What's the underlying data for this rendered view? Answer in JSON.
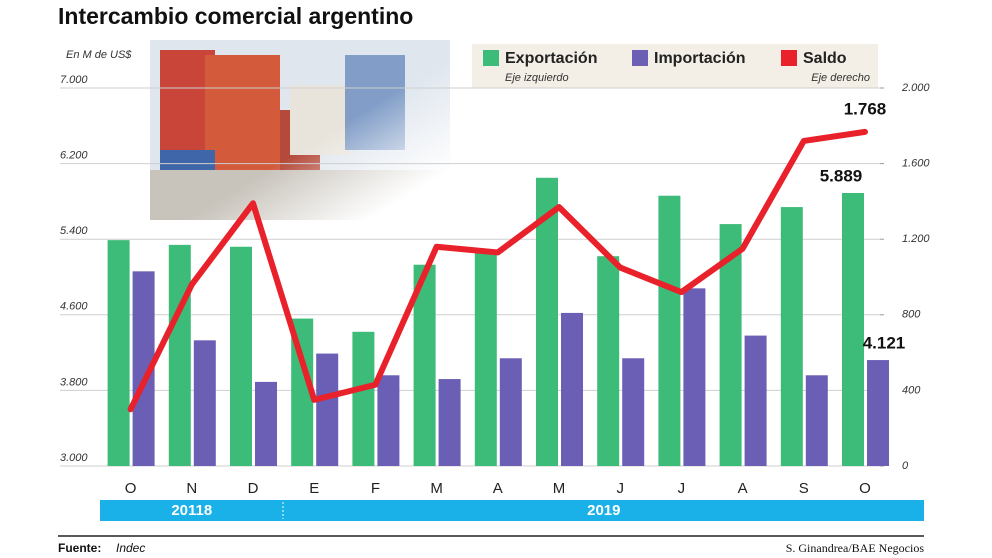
{
  "chart_data": {
    "type": "bar-line",
    "title": "Intercambio comercial argentino",
    "y_label": "En M de US$",
    "categories": [
      "O",
      "N",
      "D",
      "E",
      "F",
      "M",
      "A",
      "M",
      "J",
      "J",
      "A",
      "S",
      "O"
    ],
    "year_labels": [
      "20118",
      "2019"
    ],
    "ylim": [
      3000,
      7000
    ],
    "yticks": [
      {
        "value": 3000,
        "label": "3.000"
      },
      {
        "value": 3800,
        "label": "3.800"
      },
      {
        "value": 4600,
        "label": "4.600"
      },
      {
        "value": 5400,
        "label": "5.400"
      },
      {
        "value": 6200,
        "label": "6.200"
      },
      {
        "value": 7000,
        "label": "7.000"
      }
    ],
    "y2lim": [
      0,
      2000
    ],
    "y2ticks": [
      0,
      400,
      800,
      {
        "value": 1200,
        "label": "1.200"
      },
      {
        "value": 1600,
        "label": "1.600"
      },
      {
        "value": 2000,
        "label": "2.000"
      }
    ],
    "grid": true,
    "series": [
      {
        "name": "Exportación",
        "note": "Eje izquierdo",
        "color": "#3dbb78",
        "type": "bar",
        "values": [
          5390,
          5340,
          5320,
          4560,
          4420,
          5130,
          5290,
          6050,
          5220,
          5860,
          5560,
          5740,
          5889
        ],
        "value_labels": [
          null,
          null,
          null,
          null,
          null,
          null,
          null,
          null,
          null,
          null,
          null,
          null,
          "5.889"
        ]
      },
      {
        "name": "Importación",
        "color": "#6a5fb4",
        "type": "bar",
        "values": [
          5060,
          4330,
          3890,
          4190,
          3960,
          3920,
          4140,
          4620,
          4140,
          4880,
          4380,
          3960,
          4121
        ],
        "value_labels": [
          null,
          null,
          null,
          null,
          null,
          null,
          null,
          null,
          null,
          null,
          null,
          null,
          "4.121"
        ]
      },
      {
        "name": "Saldo",
        "note": "Eje derecho",
        "color": "#e8212b",
        "type": "line",
        "axis": "y2",
        "values": [
          300,
          960,
          1390,
          350,
          430,
          1160,
          1130,
          1370,
          1050,
          920,
          1150,
          1720,
          1768
        ],
        "value_labels": [
          null,
          null,
          null,
          null,
          null,
          null,
          null,
          null,
          null,
          null,
          null,
          null,
          "1.768"
        ]
      }
    ],
    "source_label": "Fuente:",
    "source": "Indec",
    "credit": "S. Ginandrea/BAE Negocios"
  }
}
